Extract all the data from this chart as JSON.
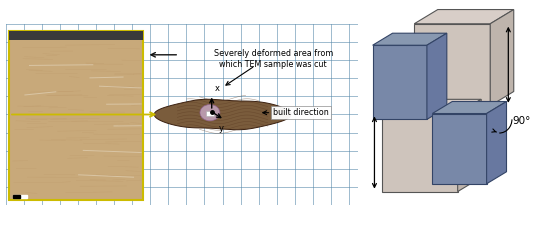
{
  "fig_width": 5.5,
  "fig_height": 2.29,
  "dpi": 100,
  "bg_color": "#ffffff",
  "left_photo_color": "#c8a97a",
  "left_photo_dark_top": "#3a3a3a",
  "grid_color": "#5588aa",
  "grid_bg": "#dcdcd0",
  "sample_color": "#7a5c3c",
  "tem_spot_color": "#c0a0b8",
  "arrow_color": "#111111",
  "yellow_color": "#ccbb00",
  "annotation_text1": "Severely deformed area from",
  "annotation_text2": "which TEM sample was cut",
  "built_dir_text": "built direction",
  "x_label": "x",
  "y_label": "y",
  "angle_label": "90°",
  "cube_light_face_top": "#d8cec8",
  "cube_light_face_front": "#cec4bc",
  "cube_light_face_right": "#beb4ac",
  "cube_light_edge": "#555555",
  "cube_dark_face_top": "#8898b0",
  "cube_dark_face_front": "#7888a8",
  "cube_dark_face_right": "#6878a0",
  "cube_dark_edge": "#334466"
}
